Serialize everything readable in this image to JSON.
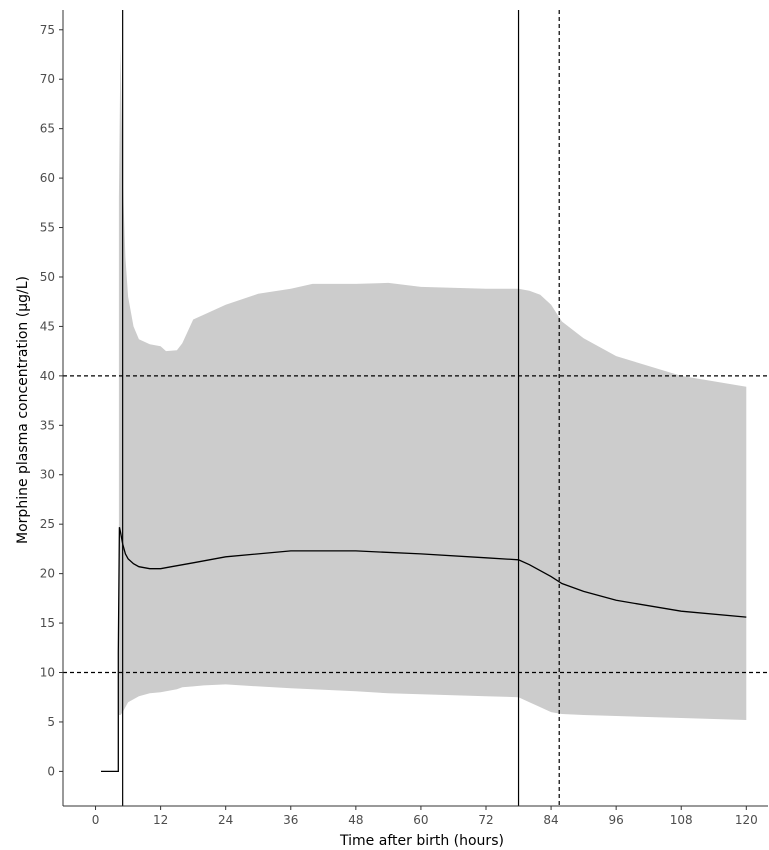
{
  "chart_data": {
    "type": "line",
    "title": "",
    "xlabel": "Time after birth (hours)",
    "ylabel": "Morphine plasma concentration (μg/L)",
    "xlim": [
      -6,
      124
    ],
    "ylim": [
      -3.5,
      77
    ],
    "x_ticks": [
      0,
      12,
      24,
      36,
      48,
      60,
      72,
      84,
      96,
      108,
      120
    ],
    "y_ticks": [
      0,
      5,
      10,
      15,
      20,
      25,
      30,
      35,
      40,
      45,
      50,
      55,
      60,
      65,
      70,
      75
    ],
    "grid": false,
    "colors": {
      "band": "#cccccc",
      "line": "#000000",
      "axis": "#333333"
    },
    "series": [
      {
        "role": "median",
        "x": [
          1,
          4.2,
          4.2,
          4.4,
          4.6,
          5.0,
          5.5,
          6,
          7,
          8,
          10,
          12,
          14,
          18,
          24,
          36,
          48,
          60,
          72,
          78,
          80,
          84,
          86,
          90,
          96,
          108,
          120
        ],
        "y": [
          0,
          0,
          12,
          24.7,
          24.2,
          23.0,
          22.0,
          21.5,
          21.0,
          20.7,
          20.5,
          20.5,
          20.7,
          21.1,
          21.7,
          22.3,
          22.3,
          22.0,
          21.6,
          21.4,
          20.9,
          19.7,
          19.0,
          18.2,
          17.3,
          16.2,
          15.6
        ]
      },
      {
        "role": "interval",
        "x": [
          4.3,
          4.6,
          5,
          5.5,
          6,
          7,
          8,
          10,
          12,
          13,
          15,
          16,
          18,
          20,
          24,
          30,
          36,
          40,
          48,
          54,
          60,
          72,
          78,
          80,
          82,
          84,
          86,
          90,
          96,
          108,
          120
        ],
        "upper": [
          58,
          73.5,
          60,
          52,
          48,
          45,
          43.7,
          43.2,
          43.0,
          42.5,
          42.6,
          43.3,
          45.7,
          46.2,
          47.2,
          48.3,
          48.8,
          49.3,
          49.3,
          49.4,
          49.0,
          48.8,
          48.8,
          48.6,
          48.2,
          47.2,
          45.5,
          43.8,
          42.0,
          40.0,
          38.9
        ],
        "lower": [
          5.7,
          5.7,
          6.0,
          6.5,
          7.0,
          7.3,
          7.6,
          7.9,
          8.0,
          8.1,
          8.3,
          8.5,
          8.6,
          8.7,
          8.8,
          8.6,
          8.4,
          8.3,
          8.1,
          7.9,
          7.8,
          7.6,
          7.5,
          7.0,
          6.5,
          6.0,
          5.8,
          5.7,
          5.6,
          5.4,
          5.2
        ]
      }
    ],
    "reference_lines": [
      {
        "orientation": "vertical",
        "value": 5,
        "style": "solid"
      },
      {
        "orientation": "vertical",
        "value": 78,
        "style": "solid"
      },
      {
        "orientation": "vertical",
        "value": 85.5,
        "style": "dashed"
      },
      {
        "orientation": "horizontal",
        "value": 40,
        "style": "dashed"
      },
      {
        "orientation": "horizontal",
        "value": 10,
        "style": "dashed"
      }
    ]
  }
}
